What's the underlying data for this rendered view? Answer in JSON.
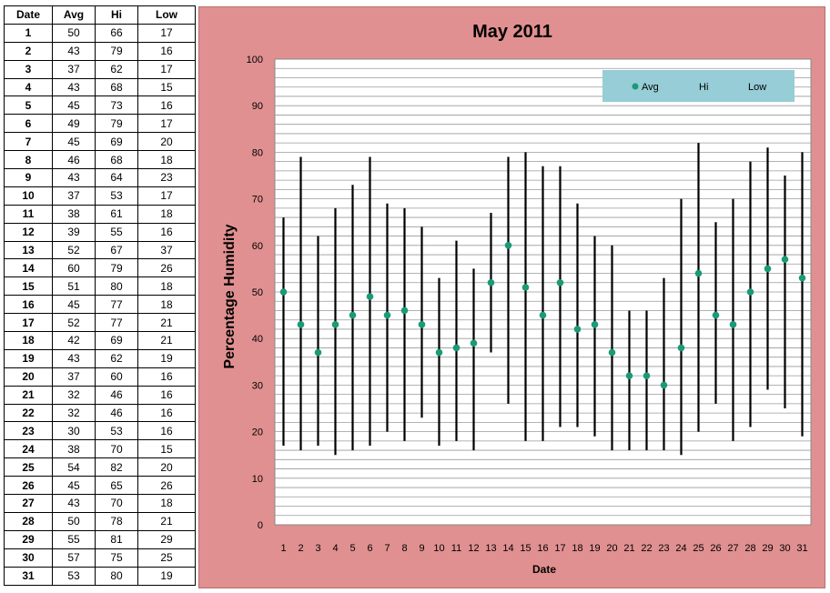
{
  "table": {
    "headers": [
      "Date",
      "Avg",
      "Hi",
      "Low"
    ],
    "rows": [
      [
        "1",
        "50",
        "66",
        "17"
      ],
      [
        "2",
        "43",
        "79",
        "16"
      ],
      [
        "3",
        "37",
        "62",
        "17"
      ],
      [
        "4",
        "43",
        "68",
        "15"
      ],
      [
        "5",
        "45",
        "73",
        "16"
      ],
      [
        "6",
        "49",
        "79",
        "17"
      ],
      [
        "7",
        "45",
        "69",
        "20"
      ],
      [
        "8",
        "46",
        "68",
        "18"
      ],
      [
        "9",
        "43",
        "64",
        "23"
      ],
      [
        "10",
        "37",
        "53",
        "17"
      ],
      [
        "11",
        "38",
        "61",
        "18"
      ],
      [
        "12",
        "39",
        "55",
        "16"
      ],
      [
        "13",
        "52",
        "67",
        "37"
      ],
      [
        "14",
        "60",
        "79",
        "26"
      ],
      [
        "15",
        "51",
        "80",
        "18"
      ],
      [
        "16",
        "45",
        "77",
        "18"
      ],
      [
        "17",
        "52",
        "77",
        "21"
      ],
      [
        "18",
        "42",
        "69",
        "21"
      ],
      [
        "19",
        "43",
        "62",
        "19"
      ],
      [
        "20",
        "37",
        "60",
        "16"
      ],
      [
        "21",
        "32",
        "46",
        "16"
      ],
      [
        "22",
        "32",
        "46",
        "16"
      ],
      [
        "23",
        "30",
        "53",
        "16"
      ],
      [
        "24",
        "38",
        "70",
        "15"
      ],
      [
        "25",
        "54",
        "82",
        "20"
      ],
      [
        "26",
        "45",
        "65",
        "26"
      ],
      [
        "27",
        "43",
        "70",
        "18"
      ],
      [
        "28",
        "50",
        "78",
        "21"
      ],
      [
        "29",
        "55",
        "81",
        "29"
      ],
      [
        "30",
        "57",
        "75",
        "25"
      ],
      [
        "31",
        "53",
        "80",
        "19"
      ]
    ]
  },
  "chart_data": {
    "type": "scatter",
    "title": "May 2011",
    "xlabel": "Date",
    "ylabel": "Percentage Humidity",
    "categories": [
      "1",
      "2",
      "3",
      "4",
      "5",
      "6",
      "7",
      "8",
      "9",
      "10",
      "11",
      "12",
      "13",
      "14",
      "15",
      "16",
      "17",
      "18",
      "19",
      "20",
      "21",
      "22",
      "23",
      "24",
      "25",
      "26",
      "27",
      "28",
      "29",
      "30",
      "31"
    ],
    "series": [
      {
        "name": "Avg",
        "values": [
          50,
          43,
          37,
          43,
          45,
          49,
          45,
          46,
          43,
          37,
          38,
          39,
          52,
          60,
          51,
          45,
          52,
          42,
          43,
          37,
          32,
          32,
          30,
          38,
          54,
          45,
          43,
          50,
          55,
          57,
          53
        ]
      },
      {
        "name": "Hi",
        "values": [
          66,
          79,
          62,
          68,
          73,
          79,
          69,
          68,
          64,
          53,
          61,
          55,
          67,
          79,
          80,
          77,
          77,
          69,
          62,
          60,
          46,
          46,
          53,
          70,
          82,
          65,
          70,
          78,
          81,
          75,
          80
        ]
      },
      {
        "name": "Low",
        "values": [
          17,
          16,
          17,
          15,
          16,
          17,
          20,
          18,
          23,
          17,
          18,
          16,
          37,
          26,
          18,
          18,
          21,
          21,
          19,
          16,
          16,
          16,
          16,
          15,
          20,
          26,
          18,
          21,
          29,
          25,
          19
        ]
      }
    ],
    "ylim": [
      0,
      100
    ],
    "yticks": [
      "0",
      "10",
      "20",
      "30",
      "40",
      "50",
      "60",
      "70",
      "80",
      "90",
      "100"
    ],
    "minor_gridline_step": 2,
    "grid": true,
    "legend_position": "top-right",
    "colors": {
      "avg_marker": "#1a9a76",
      "range_line": "#000000",
      "panel_background": "#e09090",
      "plot_background": "#ffffff",
      "legend_background": "#96cdd6",
      "gridline": "#9a9a9a"
    }
  }
}
